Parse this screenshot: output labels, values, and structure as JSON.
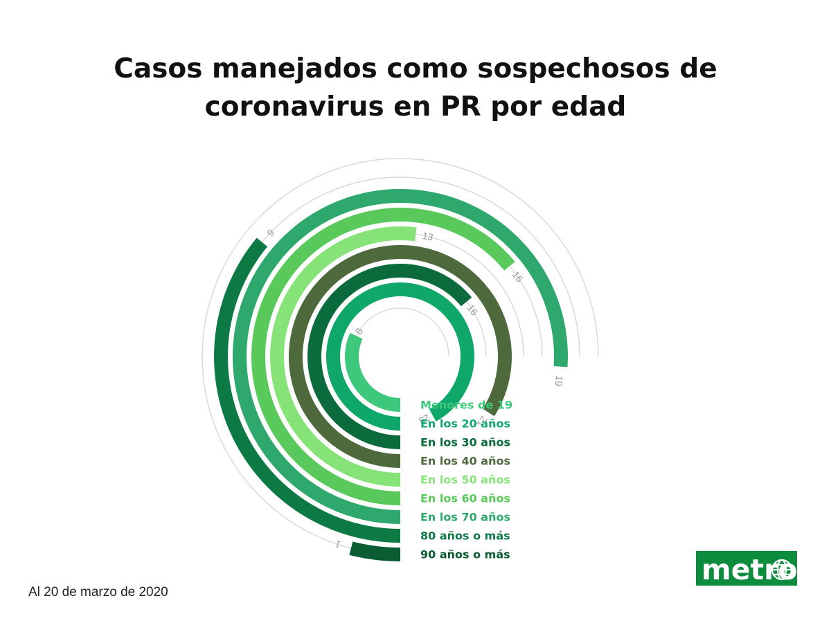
{
  "title_lines": [
    "Casos manejados como sospechosos de",
    "coronavirus en PR por edad"
  ],
  "footnote": "Al 20 de marzo de 2020",
  "logo": {
    "text": "metro",
    "background": "#0d8c3d",
    "text_color": "#ffffff"
  },
  "chart_data": {
    "type": "radial-bar",
    "title": "Casos manejados como sospechosos de coronavirus en PR por edad",
    "value_axis_max": 25,
    "track_color": "#d9d9d9",
    "value_label_color": "#999999",
    "categories": [
      "Menores de 19",
      "En los 20 años",
      "En los 30 años",
      "En los 40 años",
      "En los 50 años",
      "En los 60 años",
      "En los 70 años",
      "80 años o más",
      "90 años o más"
    ],
    "values": [
      8,
      23,
      16,
      21,
      13,
      16,
      19,
      9,
      1
    ],
    "colors": [
      "#3ec87c",
      "#0fa86a",
      "#0b6b3c",
      "#4e6a3c",
      "#86e377",
      "#5ac95c",
      "#2ea86c",
      "#0d7a45",
      "#0b5c33"
    ]
  }
}
